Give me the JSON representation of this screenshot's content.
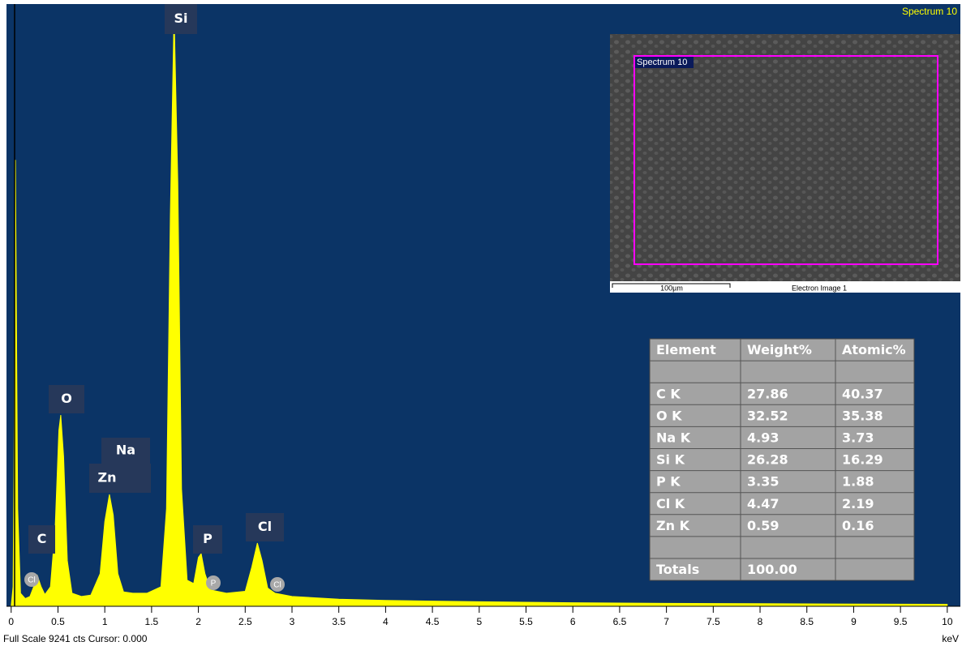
{
  "chart_data": {
    "type": "area",
    "title": "Spectrum 10",
    "x_label": "keV",
    "footer": "Full Scale 9241 cts Cursor: 0.000",
    "color": "#ffff00",
    "x": [
      0.0,
      0.02,
      0.03,
      0.045,
      0.07,
      0.1,
      0.15,
      0.2,
      0.24,
      0.28,
      0.32,
      0.36,
      0.42,
      0.47,
      0.51,
      0.53,
      0.56,
      0.6,
      0.65,
      0.75,
      0.85,
      0.95,
      1.0,
      1.05,
      1.09,
      1.14,
      1.2,
      1.3,
      1.45,
      1.6,
      1.66,
      1.7,
      1.74,
      1.78,
      1.82,
      1.88,
      1.95,
      2.0,
      2.03,
      2.07,
      2.13,
      2.3,
      2.5,
      2.57,
      2.63,
      2.68,
      2.74,
      2.82,
      3.0,
      3.5,
      4.0,
      4.5,
      5.0,
      6.0,
      7.0,
      8.0,
      9.0,
      10.0
    ],
    "values": [
      0,
      300,
      2000,
      6850,
      1500,
      200,
      120,
      150,
      300,
      470,
      300,
      180,
      300,
      1200,
      2700,
      2935,
      2300,
      700,
      200,
      150,
      170,
      500,
      1300,
      1716,
      1400,
      500,
      220,
      200,
      200,
      300,
      1500,
      6000,
      9117,
      6500,
      1800,
      400,
      350,
      750,
      808,
      500,
      250,
      200,
      230,
      600,
      970,
      700,
      280,
      200,
      150,
      110,
      90,
      80,
      70,
      55,
      45,
      40,
      35,
      30
    ],
    "xlim": [
      -0.05,
      10.14
    ],
    "ylim": [
      0,
      9241
    ],
    "xticks": [
      0,
      0.5,
      1,
      1.5,
      2,
      2.5,
      3,
      3.5,
      4,
      4.5,
      5,
      5.5,
      6,
      6.5,
      7,
      7.5,
      8,
      8.5,
      9,
      9.5,
      10
    ],
    "peak_labels": [
      "Si",
      "O",
      "Na",
      "Zn",
      "C",
      "P",
      "Cl"
    ],
    "minor_peak_labels": [
      "Cl",
      "P",
      "Cl"
    ]
  },
  "image": {
    "label": "Spectrum 10",
    "scale_bar": "100µm",
    "caption": "Electron Image 1"
  },
  "table": {
    "headers": [
      "Element",
      "Weight%",
      "Atomic%"
    ],
    "rows": [
      [
        "C K",
        "27.86",
        "40.37"
      ],
      [
        "O K",
        "32.52",
        "35.38"
      ],
      [
        "Na K",
        "4.93",
        "3.73"
      ],
      [
        "Si K",
        "26.28",
        "16.29"
      ],
      [
        "P K",
        "3.35",
        "1.88"
      ],
      [
        "Cl K",
        "4.47",
        "2.19"
      ],
      [
        "Zn K",
        "0.59",
        "0.16"
      ]
    ],
    "totals": [
      "Totals",
      "100.00"
    ]
  }
}
